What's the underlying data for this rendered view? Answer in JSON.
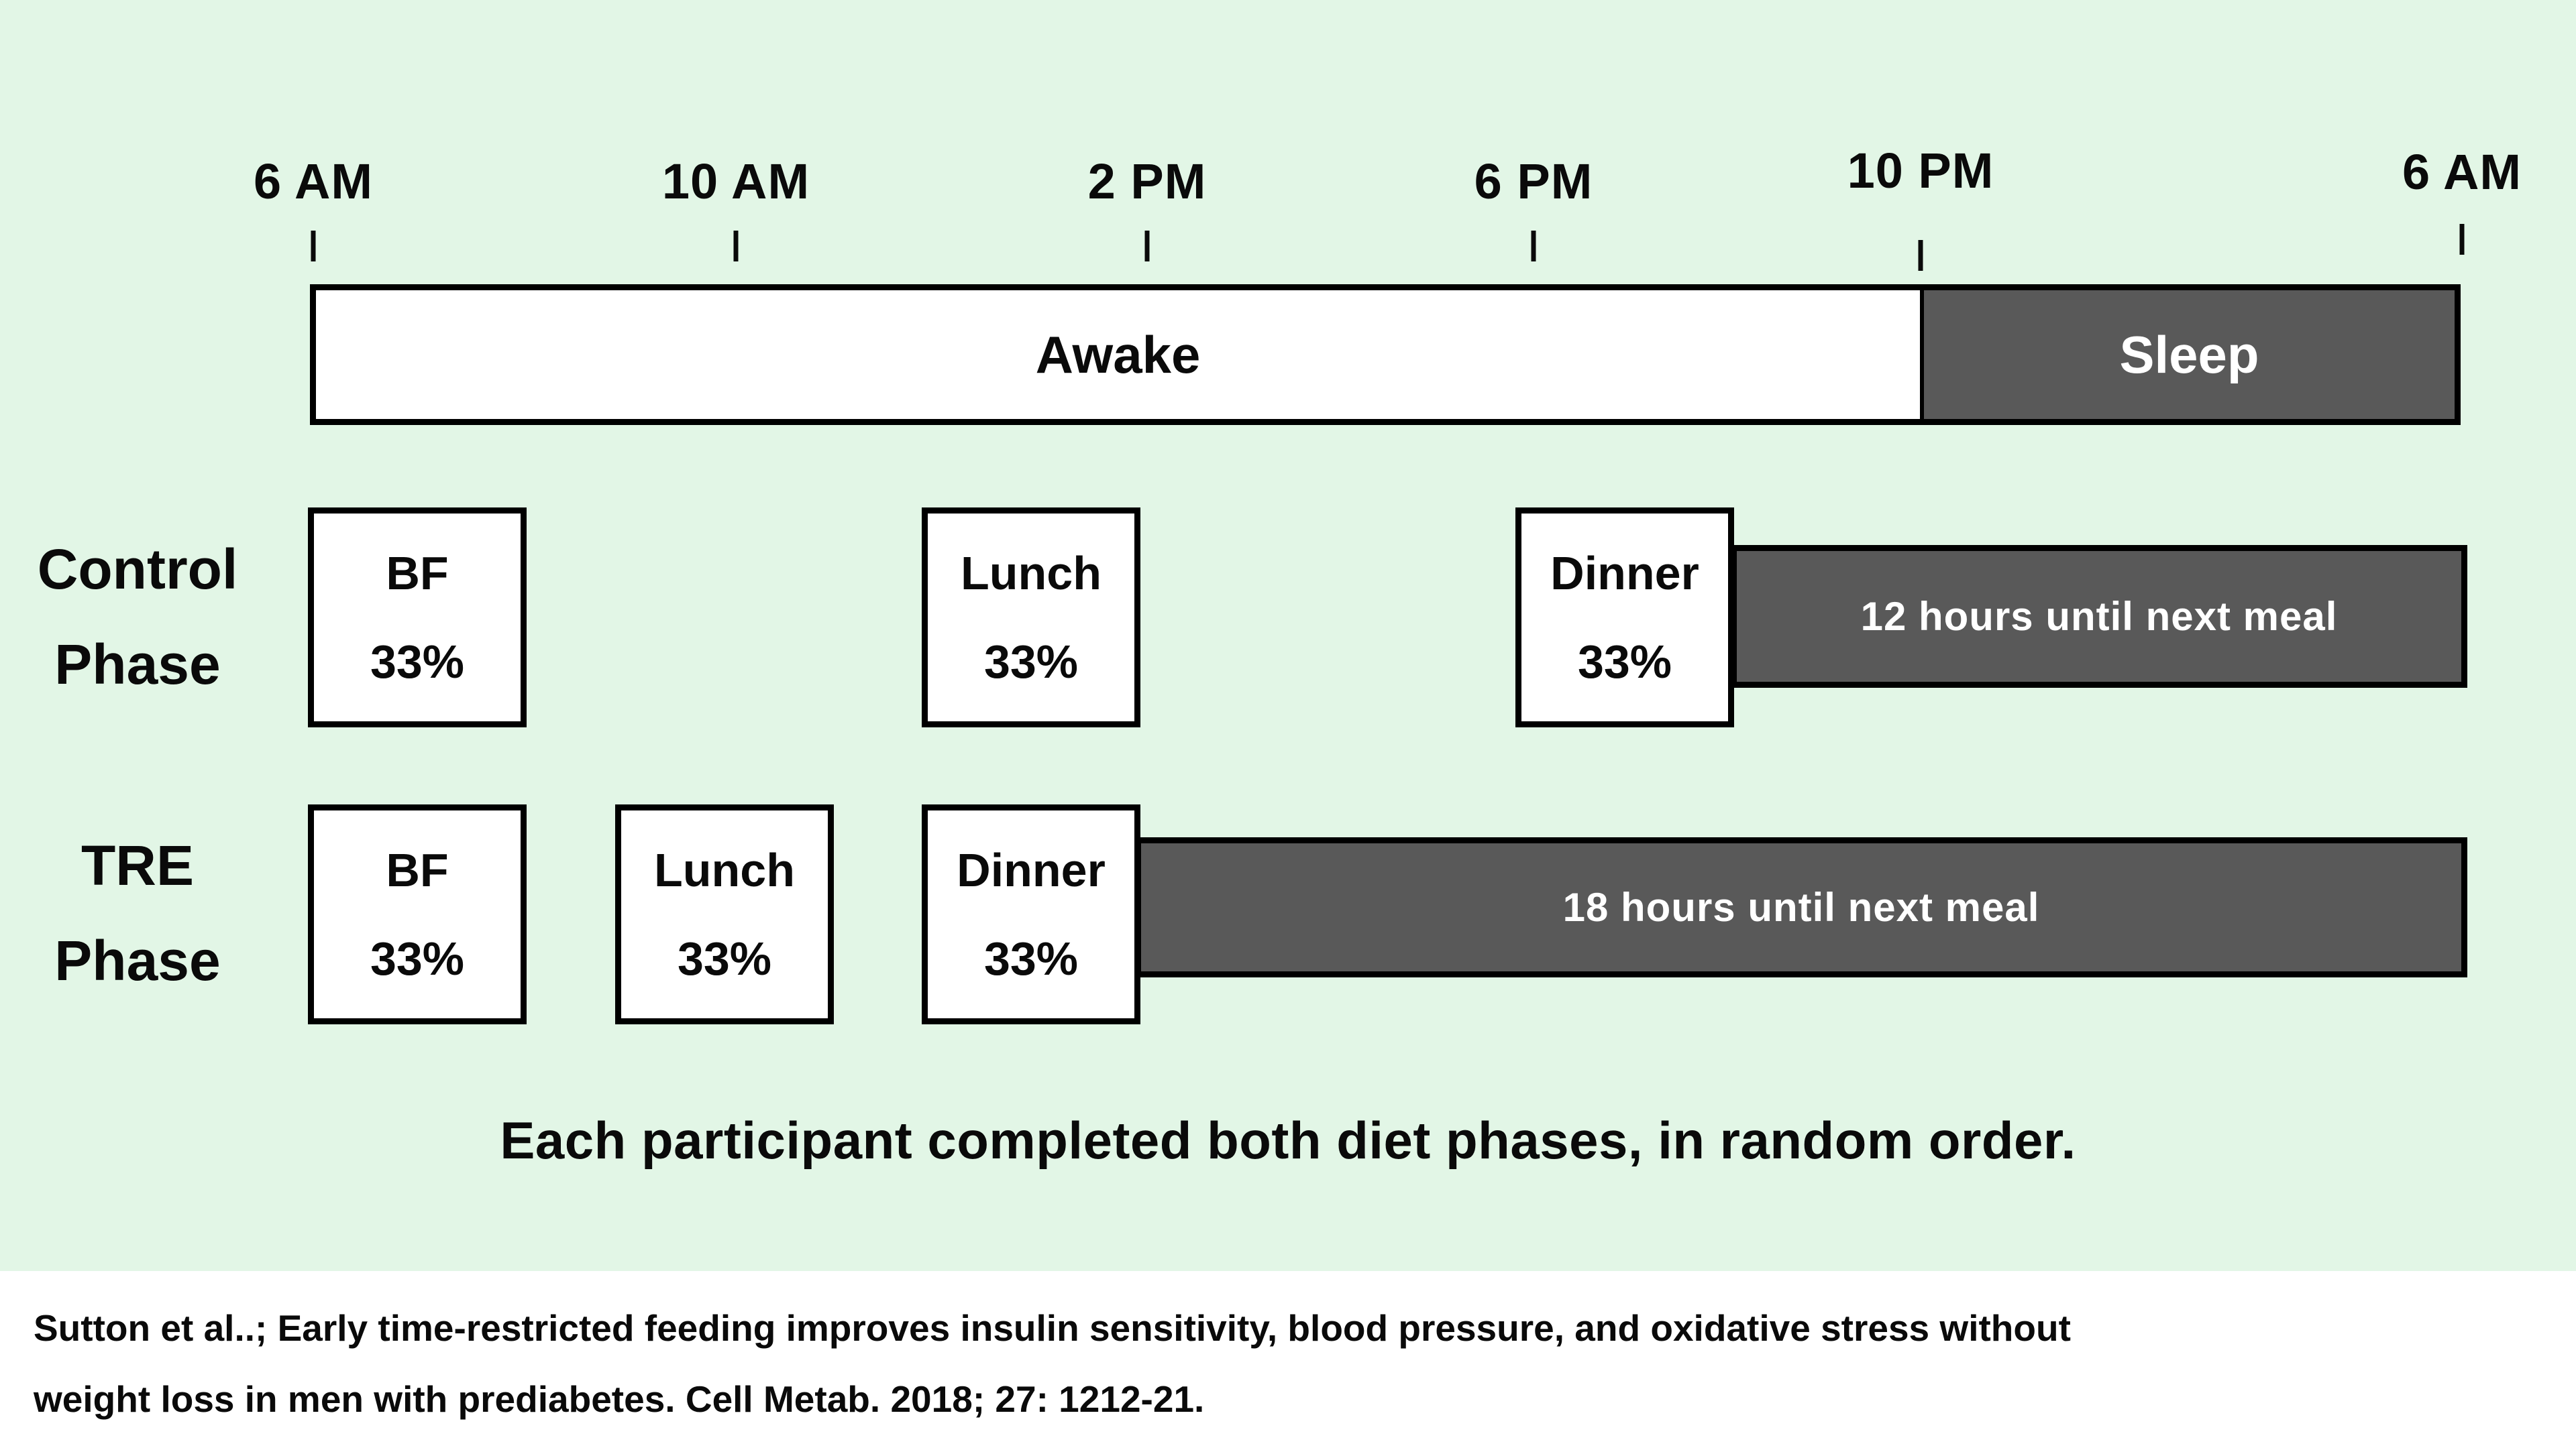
{
  "figure": {
    "timeline": {
      "tick_labels": [
        "6 AM",
        "10 AM",
        "2 PM",
        "6 PM",
        "10 PM",
        "6 AM"
      ]
    },
    "wake_bar": {
      "awake_label": "Awake",
      "sleep_label": "Sleep"
    },
    "rows": {
      "control": {
        "label_line1": "Control",
        "label_line2": "Phase",
        "meals": [
          {
            "name": "BF",
            "share": "33%"
          },
          {
            "name": "Lunch",
            "share": "33%"
          },
          {
            "name": "Dinner",
            "share": "33%"
          }
        ],
        "fasting_label": "12 hours until next meal"
      },
      "tre": {
        "label_line1": "TRE",
        "label_line2": "Phase",
        "meals": [
          {
            "name": "BF",
            "share": "33%"
          },
          {
            "name": "Lunch",
            "share": "33%"
          },
          {
            "name": "Dinner",
            "share": "33%"
          }
        ],
        "fasting_label": "18 hours until next meal"
      }
    },
    "caption": "Each participant completed both diet phases, in random order.",
    "citation": {
      "line1": "Sutton et al..; Early time-restricted feeding improves insulin sensitivity, blood pressure, and oxidative stress without",
      "line2": "weight loss in men with prediabetes. Cell Metab. 2018; 27: 1212-21."
    },
    "colors": {
      "background": "#e2f6e6",
      "dark_bar": "#595959",
      "box_background": "#ffffff",
      "border": "#000000",
      "text_dark": "#0a0a0a",
      "text_light": "#ffffff"
    }
  }
}
